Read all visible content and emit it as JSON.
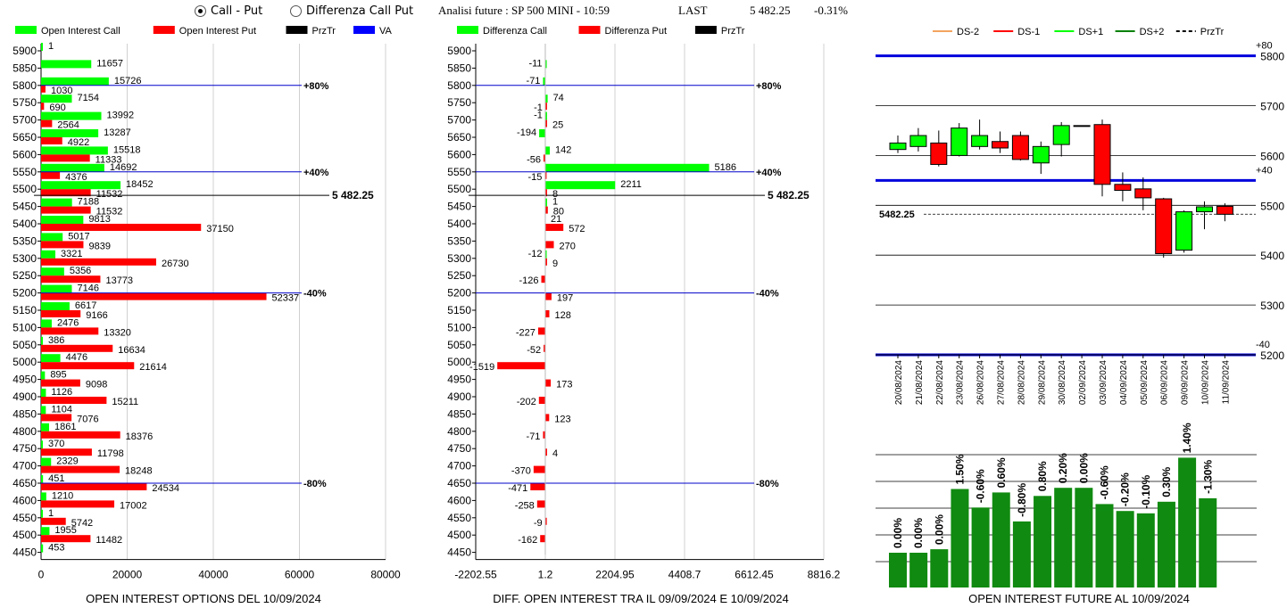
{
  "toolbar": {
    "radio_call_put": "Call - Put",
    "radio_diff": "Differenza Call Put",
    "selected": "call_put",
    "title": "Analisi future : SP 500 MINI - 10:59",
    "last_label": "LAST",
    "last_value": "5 482.25",
    "last_change": "-0.31%"
  },
  "colors": {
    "call": "#00ff00",
    "put": "#ff0000",
    "przTr": "#000000",
    "va": "#0000ff",
    "ds_minus2": "#f4a460",
    "ds_minus1": "#ff0000",
    "ds_plus1": "#00ff00",
    "ds_plus2": "#008000"
  },
  "chart_data": [
    {
      "type": "bar",
      "orientation": "horizontal",
      "title": "OPEN INTEREST OPTIONS DEL 10/09/2024",
      "legend": [
        "Open Interest Call",
        "Open Interest Put",
        "PrzTr",
        "VA"
      ],
      "categories": [
        "5900",
        "5850",
        "5800",
        "5750",
        "5700",
        "5650",
        "5600",
        "5550",
        "5500",
        "5450",
        "5400",
        "5350",
        "5300",
        "5250",
        "5200",
        "5150",
        "5100",
        "5050",
        "5000",
        "4950",
        "4900",
        "4850",
        "4800",
        "4750",
        "4700",
        "4650",
        "4600",
        "4550",
        "4500",
        "4450"
      ],
      "series": [
        {
          "name": "Open Interest Call",
          "values": [
            1,
            11657,
            15726,
            7154,
            13992,
            13287,
            15518,
            14692,
            18452,
            7188,
            9813,
            5017,
            3321,
            5356,
            7146,
            6617,
            2476,
            386,
            4476,
            895,
            1126,
            1104,
            1861,
            370,
            2329,
            451,
            1210,
            1,
            1955,
            453
          ]
        },
        {
          "name": "Open Interest Put",
          "values": [
            null,
            null,
            1030,
            690,
            2564,
            4922,
            11333,
            4376,
            11532,
            11532,
            37150,
            9839,
            26730,
            13773,
            52337,
            9166,
            13320,
            16634,
            21614,
            9098,
            15211,
            7076,
            18376,
            11798,
            18248,
            24534,
            17002,
            5742,
            11482,
            null
          ]
        }
      ],
      "xlim": [
        0,
        80000
      ],
      "xticks": [
        "0",
        "20000",
        "40000",
        "60000",
        "80000"
      ],
      "markers": [
        {
          "category": "5800",
          "label": "+80%"
        },
        {
          "category": "5550",
          "label": "+40%"
        },
        {
          "category": "5200",
          "label": "-40%"
        },
        {
          "category": "4650",
          "label": "-80%"
        }
      ],
      "price_line": {
        "value": 5482.25,
        "label": "5 482.25"
      }
    },
    {
      "type": "bar",
      "orientation": "horizontal",
      "title": "DIFF. OPEN INTEREST TRA IL 09/09/2024 E 10/09/2024",
      "legend": [
        "Differenza Call",
        "Differenza Put",
        "PrzTr"
      ],
      "categories": [
        "5900",
        "5850",
        "5800",
        "5750",
        "5700",
        "5650",
        "5600",
        "5550",
        "5500",
        "5450",
        "5400",
        "5350",
        "5300",
        "5250",
        "5200",
        "5150",
        "5100",
        "5050",
        "5000",
        "4950",
        "4900",
        "4850",
        "4800",
        "4750",
        "4700",
        "4650",
        "4600",
        "4550",
        "4500",
        "4450"
      ],
      "series": [
        {
          "name": "Differenza Call",
          "values": [
            null,
            -11,
            -71,
            74,
            -1,
            -194,
            142,
            5186,
            2211,
            1,
            null,
            null,
            -12,
            null,
            null,
            null,
            null,
            null,
            null,
            null,
            null,
            null,
            null,
            null,
            null,
            null,
            null,
            null,
            null,
            null
          ]
        },
        {
          "name": "Differenza Put",
          "values": [
            null,
            null,
            null,
            -1,
            25,
            null,
            -56,
            -15,
            8,
            80,
            572,
            270,
            9,
            -126,
            197,
            128,
            -227,
            -52,
            -1519,
            173,
            -202,
            123,
            -71,
            4,
            -370,
            -471,
            -258,
            -9,
            -162,
            null
          ]
        }
      ],
      "extra_labels": [
        {
          "category": "5400",
          "label": "21"
        }
      ],
      "xlim": [
        -2202.55,
        8816.2
      ],
      "xticks": [
        "-2202.55",
        "1.2",
        "2204.95",
        "4408.7",
        "6612.45",
        "8816.2"
      ],
      "markers": [
        {
          "category": "5800",
          "label": "+80%"
        },
        {
          "category": "5550",
          "label": "+40%"
        },
        {
          "category": "5200",
          "label": "-40%"
        },
        {
          "category": "4650",
          "label": "-80%"
        }
      ],
      "price_line": {
        "value": 5482.25,
        "label": "5 482.25"
      }
    },
    {
      "type": "candlestick",
      "legend": [
        "DS-2",
        "DS-1",
        "DS+1",
        "DS+2",
        "PrzTr"
      ],
      "x": [
        "20/08/2024",
        "21/08/2024",
        "22/08/2024",
        "23/08/2024",
        "26/08/2024",
        "27/08/2024",
        "28/08/2024",
        "29/08/2024",
        "30/08/2024",
        "02/09/2024",
        "03/09/2024",
        "04/09/2024",
        "05/09/2024",
        "06/09/2024",
        "09/09/2024",
        "10/09/2024",
        "11/09/2024"
      ],
      "open": [
        5612,
        5618,
        5625,
        5600,
        5618,
        5628,
        5640,
        5585,
        5622,
        5660,
        5662,
        5542,
        5533,
        5513,
        5410,
        5487,
        5498
      ],
      "close": [
        5625,
        5640,
        5582,
        5655,
        5640,
        5615,
        5592,
        5618,
        5660,
        5660,
        5542,
        5530,
        5515,
        5403,
        5487,
        5497,
        5482
      ],
      "high": [
        5640,
        5655,
        5650,
        5665,
        5672,
        5648,
        5648,
        5628,
        5667,
        5660,
        5672,
        5566,
        5556,
        5515,
        5490,
        5508,
        5504
      ],
      "low": [
        5605,
        5608,
        5578,
        5598,
        5612,
        5605,
        5590,
        5563,
        5598,
        5660,
        5518,
        5508,
        5490,
        5395,
        5405,
        5452,
        5468
      ],
      "ylim": [
        5200,
        5810
      ],
      "yticks": [
        "5200",
        "5300",
        "5400",
        "5500",
        "5600",
        "5700",
        "5800"
      ],
      "bands": [
        {
          "value": 5800,
          "label": "+80"
        },
        {
          "value": 5550,
          "label": "+40"
        },
        {
          "value": 5200,
          "label": "-40"
        }
      ],
      "price_line": {
        "value": 5482.25,
        "label": "5482.25"
      }
    },
    {
      "type": "bar",
      "title": "OPEN INTEREST FUTURE AL 10/09/2024",
      "categories": [
        "20/08/2024",
        "21/08/2024",
        "22/08/2024",
        "23/08/2024",
        "26/08/2024",
        "27/08/2024",
        "28/08/2024",
        "29/08/2024",
        "30/08/2024",
        "02/09/2024",
        "03/09/2024",
        "04/09/2024",
        "05/09/2024",
        "06/09/2024",
        "09/09/2024",
        "10/09/2024"
      ],
      "values": [
        30,
        30,
        33,
        85,
        69,
        82,
        57,
        79,
        86,
        86,
        72,
        66,
        64,
        74,
        112,
        77
      ],
      "labels": [
        "0.00%",
        "0.00%",
        "0.00%",
        "1.50%",
        "-0.60%",
        "0.60%",
        "-0.80%",
        "0.80%",
        "0.20%",
        "0.00%",
        "-0.60%",
        "-0.20%",
        "-0.10%",
        "0.30%",
        "1.40%",
        "-1.30%"
      ]
    }
  ]
}
